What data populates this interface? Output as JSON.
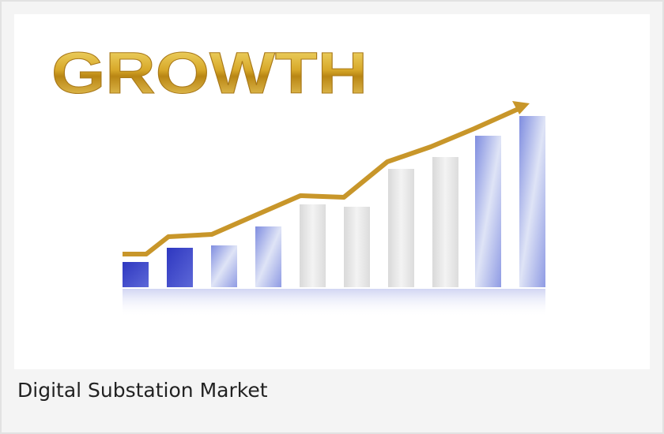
{
  "image": {
    "title": "GROWTH"
  },
  "caption": "Digital Substation Market"
}
